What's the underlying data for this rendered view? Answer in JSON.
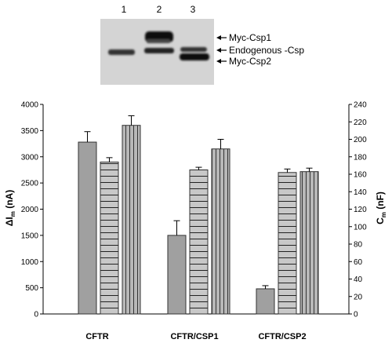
{
  "blot": {
    "lanes": [
      "1",
      "2",
      "3"
    ],
    "labels": [
      "Myc-Csp1",
      "Endogenous -Csp",
      "Myc-Csp2"
    ]
  },
  "chart_data": {
    "type": "bar",
    "categories": [
      "CFTR",
      "CFTR/CSP1",
      "CFTR/CSP2"
    ],
    "series": [
      {
        "axis": "left",
        "fill": "#a0a0a0",
        "pattern": "solid",
        "values": [
          3280,
          1500,
          480
        ],
        "errors": [
          200,
          280,
          60
        ]
      },
      {
        "axis": "right",
        "fill": "#c8c8c8",
        "pattern": "horizontal-stripes",
        "values": [
          174,
          165,
          162
        ],
        "errors": [
          5,
          3,
          4
        ]
      },
      {
        "axis": "right",
        "fill": "#b8b8b8",
        "pattern": "vertical-stripes",
        "values": [
          216,
          189,
          163
        ],
        "errors": [
          11,
          11,
          4
        ]
      }
    ],
    "ylabel_left": {
      "main": "ΔI",
      "sub": "m",
      "unit": " (nA)"
    },
    "ylabel_right": {
      "main": "C",
      "sub": "m",
      "unit": " (nF)"
    },
    "ylim_left": [
      0,
      4000
    ],
    "yticks_left": [
      0,
      500,
      1000,
      1500,
      2000,
      2500,
      3000,
      3500,
      4000
    ],
    "ylim_right": [
      0,
      240
    ],
    "yticks_right": [
      0,
      20,
      40,
      60,
      80,
      100,
      120,
      140,
      160,
      180,
      200,
      220,
      240
    ],
    "grid": false,
    "legend": "none"
  }
}
